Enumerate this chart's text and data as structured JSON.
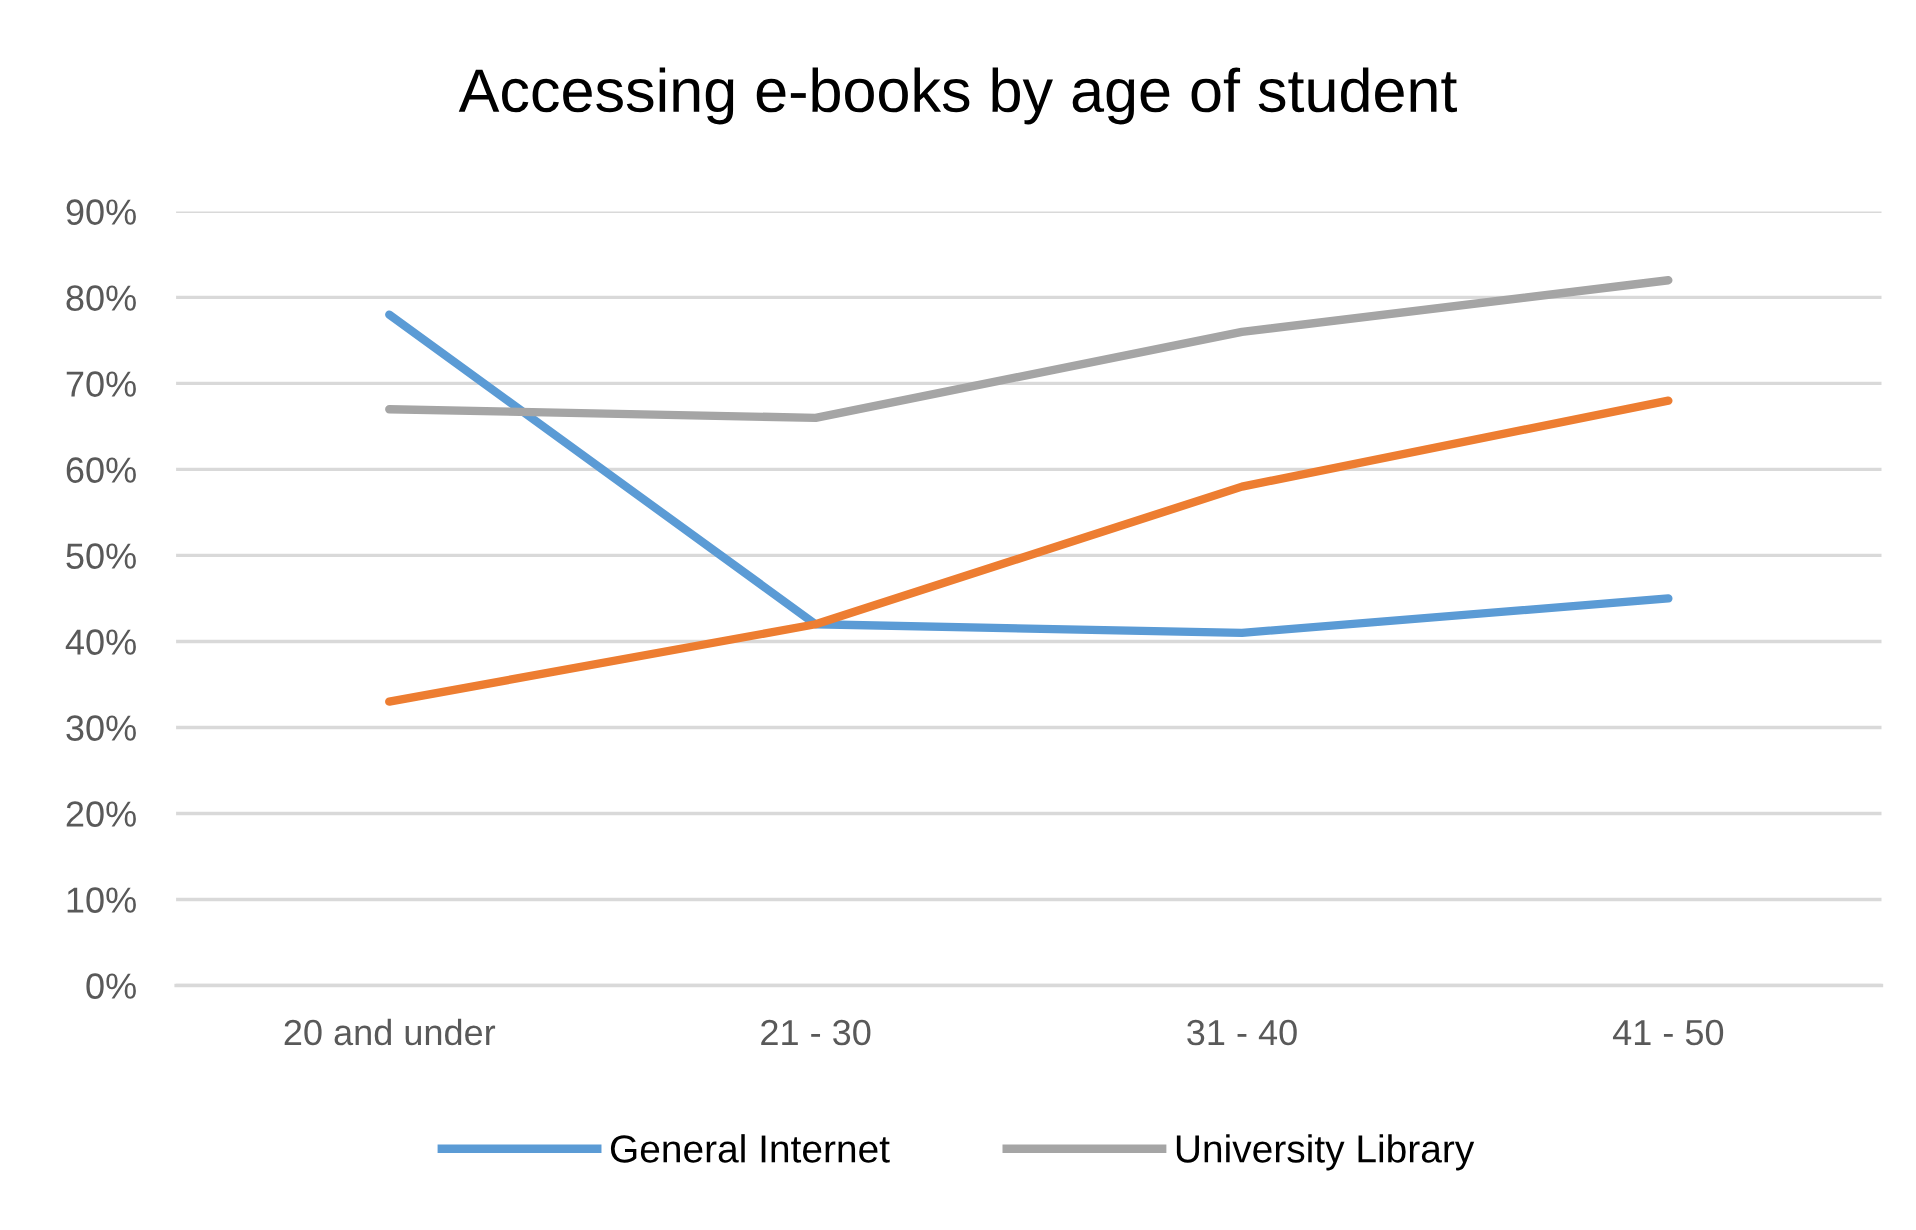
{
  "chart_data": {
    "type": "line",
    "title": "Accessing e-books by age of student",
    "categories": [
      "20 and under",
      "21 - 30",
      "31 - 40",
      "41 - 50"
    ],
    "series": [
      {
        "name": "General Internet",
        "color": "#5b9bd5",
        "values": [
          78,
          42,
          41,
          45
        ]
      },
      {
        "color": "#ed7d31",
        "values": [
          33,
          42,
          58,
          68
        ]
      },
      {
        "name": "University Library",
        "color": "#a5a5a5",
        "values": [
          67,
          66,
          76,
          82
        ]
      }
    ],
    "ylim": [
      0,
      90
    ],
    "yticks": [
      {
        "value": 0,
        "label": "0%"
      },
      {
        "value": 10,
        "label": "10%"
      },
      {
        "value": 20,
        "label": "20%"
      },
      {
        "value": 30,
        "label": "30%"
      },
      {
        "value": 40,
        "label": "40%"
      },
      {
        "value": 50,
        "label": "50%"
      },
      {
        "value": 60,
        "label": "60%"
      },
      {
        "value": 70,
        "label": "70%"
      },
      {
        "value": 80,
        "label": "80%"
      },
      {
        "value": 90,
        "label": "90%"
      }
    ],
    "grid": "y",
    "legend": "bottom",
    "line_style": "solid"
  }
}
